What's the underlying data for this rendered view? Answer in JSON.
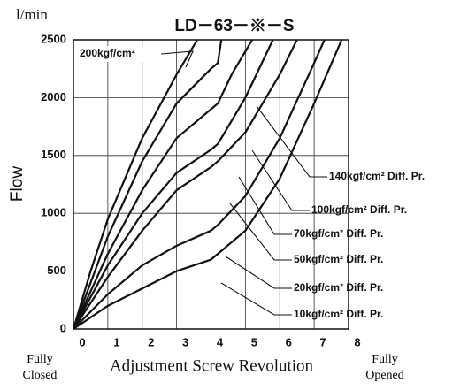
{
  "chart_data": {
    "type": "line",
    "title": "LD－63－※－S",
    "y_unit": "l/min",
    "ylabel": "Flow",
    "xlabel": "Adjustment Screw Revolution",
    "x_left_note": "Fully Closed",
    "x_right_note": "Fully Opened",
    "xlim": [
      0,
      8
    ],
    "xticks": [
      0,
      1,
      2,
      3,
      4,
      5,
      6,
      7,
      8
    ],
    "ylim": [
      0,
      2500
    ],
    "yticks": [
      0,
      500,
      1000,
      1500,
      2000,
      2500
    ],
    "grid": true,
    "series": [
      {
        "name": "200kgf/cm²",
        "color": "#111111",
        "x": [
          0,
          0.5,
          1,
          2,
          3,
          3.6
        ],
        "values": [
          0,
          500,
          950,
          1650,
          2200,
          2500
        ]
      },
      {
        "name": "140kgf/cm² Diff. Pr.",
        "color": "#111111",
        "x": [
          0,
          1,
          2,
          3,
          4,
          4.2,
          4.3
        ],
        "values": [
          0,
          800,
          1450,
          1950,
          2250,
          2300,
          2500
        ]
      },
      {
        "name": "100kgf/cm² Diff. Pr.",
        "color": "#111111",
        "x": [
          0,
          1,
          2,
          3,
          4,
          4.2,
          4.6,
          5.2
        ],
        "values": [
          0,
          650,
          1200,
          1650,
          1900,
          1950,
          2200,
          2500
        ]
      },
      {
        "name": "70kgf/cm² Diff. Pr.",
        "color": "#111111",
        "x": [
          0,
          1,
          2,
          3,
          4,
          4.2,
          5,
          5.8
        ],
        "values": [
          0,
          550,
          1000,
          1350,
          1550,
          1600,
          2000,
          2500
        ]
      },
      {
        "name": "50kgf/cm² Diff. Pr.",
        "color": "#111111",
        "x": [
          0,
          1,
          2,
          3,
          4,
          4.2,
          5,
          6,
          6.5
        ],
        "values": [
          0,
          450,
          850,
          1200,
          1400,
          1450,
          1700,
          2200,
          2500
        ]
      },
      {
        "name": "20kgf/cm² Diff. Pr.",
        "color": "#111111",
        "x": [
          0,
          1,
          2,
          3,
          4,
          4.2,
          5,
          6,
          7,
          7.3
        ],
        "values": [
          0,
          300,
          550,
          720,
          850,
          900,
          1150,
          1650,
          2300,
          2500
        ]
      },
      {
        "name": "10kgf/cm² Diff. Pr.",
        "color": "#111111",
        "x": [
          0,
          1,
          2,
          3,
          4,
          4.2,
          5,
          6,
          7,
          7.8
        ],
        "values": [
          0,
          200,
          350,
          500,
          600,
          650,
          850,
          1300,
          1950,
          2500
        ]
      }
    ]
  }
}
